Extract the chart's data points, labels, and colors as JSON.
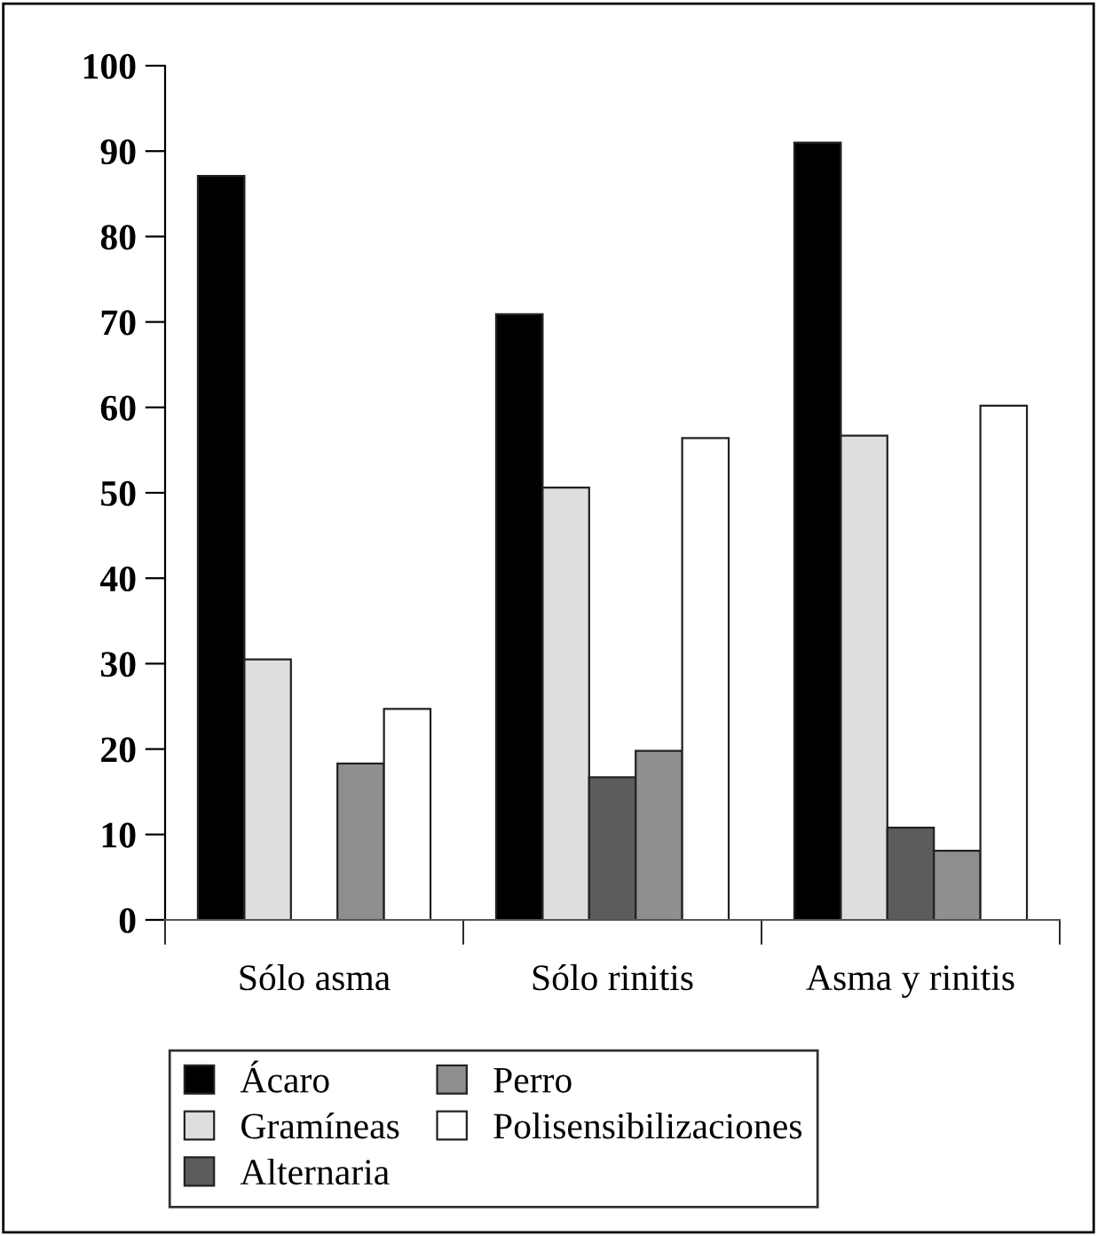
{
  "chart_data": {
    "type": "bar",
    "categories": [
      "Sólo asma",
      "Sólo rinitis",
      "Asma y rinitis"
    ],
    "series": [
      {
        "name": "Ácaro",
        "color": "#000000",
        "values": [
          87.1,
          70.9,
          91.0
        ]
      },
      {
        "name": "Gramíneas",
        "color": "#dedede",
        "values": [
          30.5,
          50.6,
          56.7
        ]
      },
      {
        "name": "Alternaria",
        "color": "#5c5c5c",
        "values": [
          null,
          16.7,
          10.8
        ]
      },
      {
        "name": "Perro",
        "color": "#8f8f8f",
        "values": [
          18.3,
          19.8,
          8.1
        ]
      },
      {
        "name": "Polisensibilizaciones",
        "color": "#ffffff",
        "values": [
          24.7,
          56.4,
          60.2
        ]
      }
    ],
    "ylim": [
      0,
      100
    ],
    "yticks": [
      0,
      10,
      20,
      30,
      40,
      50,
      60,
      70,
      80,
      90,
      100
    ],
    "grid": false,
    "legend": "bottom"
  }
}
